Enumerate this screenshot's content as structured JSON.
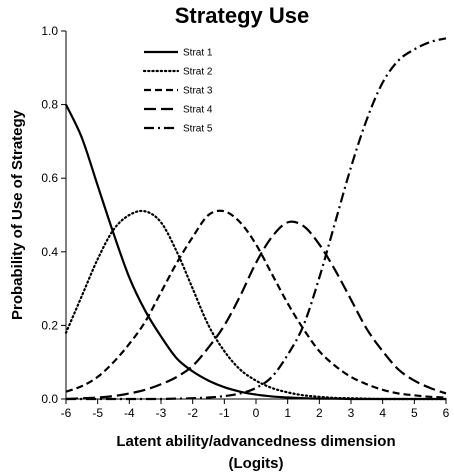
{
  "chart_data": {
    "type": "line",
    "title": "Strategy Use",
    "xlabel_line1": "Latent ability/advancedness dimension",
    "xlabel_line2": "(Logits)",
    "ylabel": "Probability of Use of Strategy",
    "xlim": [
      -6,
      6
    ],
    "ylim": [
      0,
      1
    ],
    "x_ticks": [
      -6,
      -5,
      -4,
      -3,
      -2,
      -1,
      0,
      1,
      2,
      3,
      4,
      5,
      6
    ],
    "y_ticks": [
      0.0,
      0.2,
      0.4,
      0.6,
      0.8,
      1.0
    ],
    "y_tick_labels": [
      "0.0",
      "0.2",
      "0.4",
      "0.6",
      "0.8",
      "1.0"
    ],
    "grid": false,
    "legend_position": "top-left",
    "line_color": "#000000",
    "x": [
      -6,
      -5.5,
      -5,
      -4.5,
      -4,
      -3.5,
      -3,
      -2.5,
      -2,
      -1.5,
      -1,
      -0.5,
      0,
      0.5,
      1,
      1.5,
      2,
      2.5,
      3,
      3.5,
      4,
      4.5,
      5,
      5.5,
      6
    ],
    "series": [
      {
        "name": "Strat 1",
        "dash": "solid",
        "values": [
          0.8,
          0.71,
          0.58,
          0.45,
          0.33,
          0.24,
          0.17,
          0.11,
          0.075,
          0.05,
          0.032,
          0.02,
          0.012,
          0.007,
          0.004,
          0.002,
          0.001,
          0.001,
          0,
          0,
          0,
          0,
          0,
          0,
          0
        ]
      },
      {
        "name": "Strat 2",
        "dash": "dot",
        "values": [
          0.18,
          0.28,
          0.38,
          0.46,
          0.5,
          0.51,
          0.48,
          0.4,
          0.3,
          0.2,
          0.13,
          0.08,
          0.05,
          0.03,
          0.018,
          0.01,
          0.006,
          0.003,
          0.002,
          0.001,
          0,
          0,
          0,
          0,
          0
        ]
      },
      {
        "name": "Strat 3",
        "dash": "short-dash",
        "values": [
          0.02,
          0.035,
          0.06,
          0.1,
          0.15,
          0.21,
          0.29,
          0.37,
          0.44,
          0.5,
          0.51,
          0.48,
          0.42,
          0.34,
          0.26,
          0.19,
          0.13,
          0.09,
          0.06,
          0.04,
          0.025,
          0.015,
          0.01,
          0.006,
          0.004
        ]
      },
      {
        "name": "Strat 4",
        "dash": "long-dash",
        "values": [
          0.0,
          0.002,
          0.004,
          0.008,
          0.015,
          0.025,
          0.04,
          0.06,
          0.09,
          0.14,
          0.2,
          0.28,
          0.37,
          0.44,
          0.48,
          0.47,
          0.42,
          0.35,
          0.27,
          0.19,
          0.13,
          0.08,
          0.05,
          0.03,
          0.015
        ]
      },
      {
        "name": "Strat 5",
        "dash": "dash-dot",
        "values": [
          0,
          0,
          0,
          0,
          0,
          0,
          0,
          0.001,
          0.002,
          0.004,
          0.008,
          0.015,
          0.03,
          0.06,
          0.12,
          0.2,
          0.33,
          0.48,
          0.63,
          0.76,
          0.86,
          0.92,
          0.95,
          0.97,
          0.98
        ]
      }
    ]
  }
}
